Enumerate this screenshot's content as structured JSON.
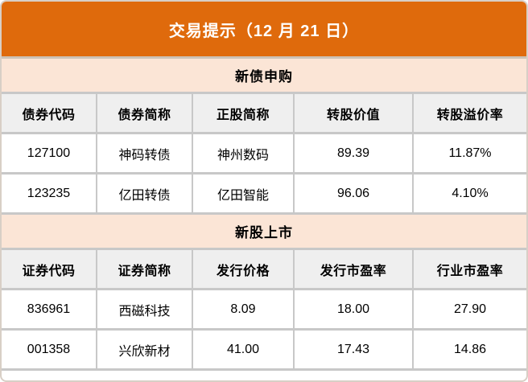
{
  "header": {
    "title": "交易提示（12 月 21 日）"
  },
  "colors": {
    "title_bg": "#df6a0c",
    "title_text": "#ffffff",
    "section_bg": "#fbe5d6",
    "column_header_bg": "#efefef",
    "row_bg": "#ffffff",
    "grid_border": "#c8c8c8",
    "text": "#000000"
  },
  "chart_data": [
    {
      "type": "table",
      "title": "新债申购",
      "columns": [
        "债券代码",
        "债券简称",
        "正股简称",
        "转股价值",
        "转股溢价率"
      ],
      "rows": [
        [
          "127100",
          "神码转债",
          "神州数码",
          "89.39",
          "11.87%"
        ],
        [
          "123235",
          "亿田转债",
          "亿田智能",
          "96.06",
          "4.10%"
        ]
      ]
    },
    {
      "type": "table",
      "title": "新股上市",
      "columns": [
        "证券代码",
        "证券简称",
        "发行价格",
        "发行市盈率",
        "行业市盈率"
      ],
      "rows": [
        [
          "836961",
          "西磁科技",
          "8.09",
          "18.00",
          "27.90"
        ],
        [
          "001358",
          "兴欣新材",
          "41.00",
          "17.43",
          "14.86"
        ]
      ]
    }
  ]
}
